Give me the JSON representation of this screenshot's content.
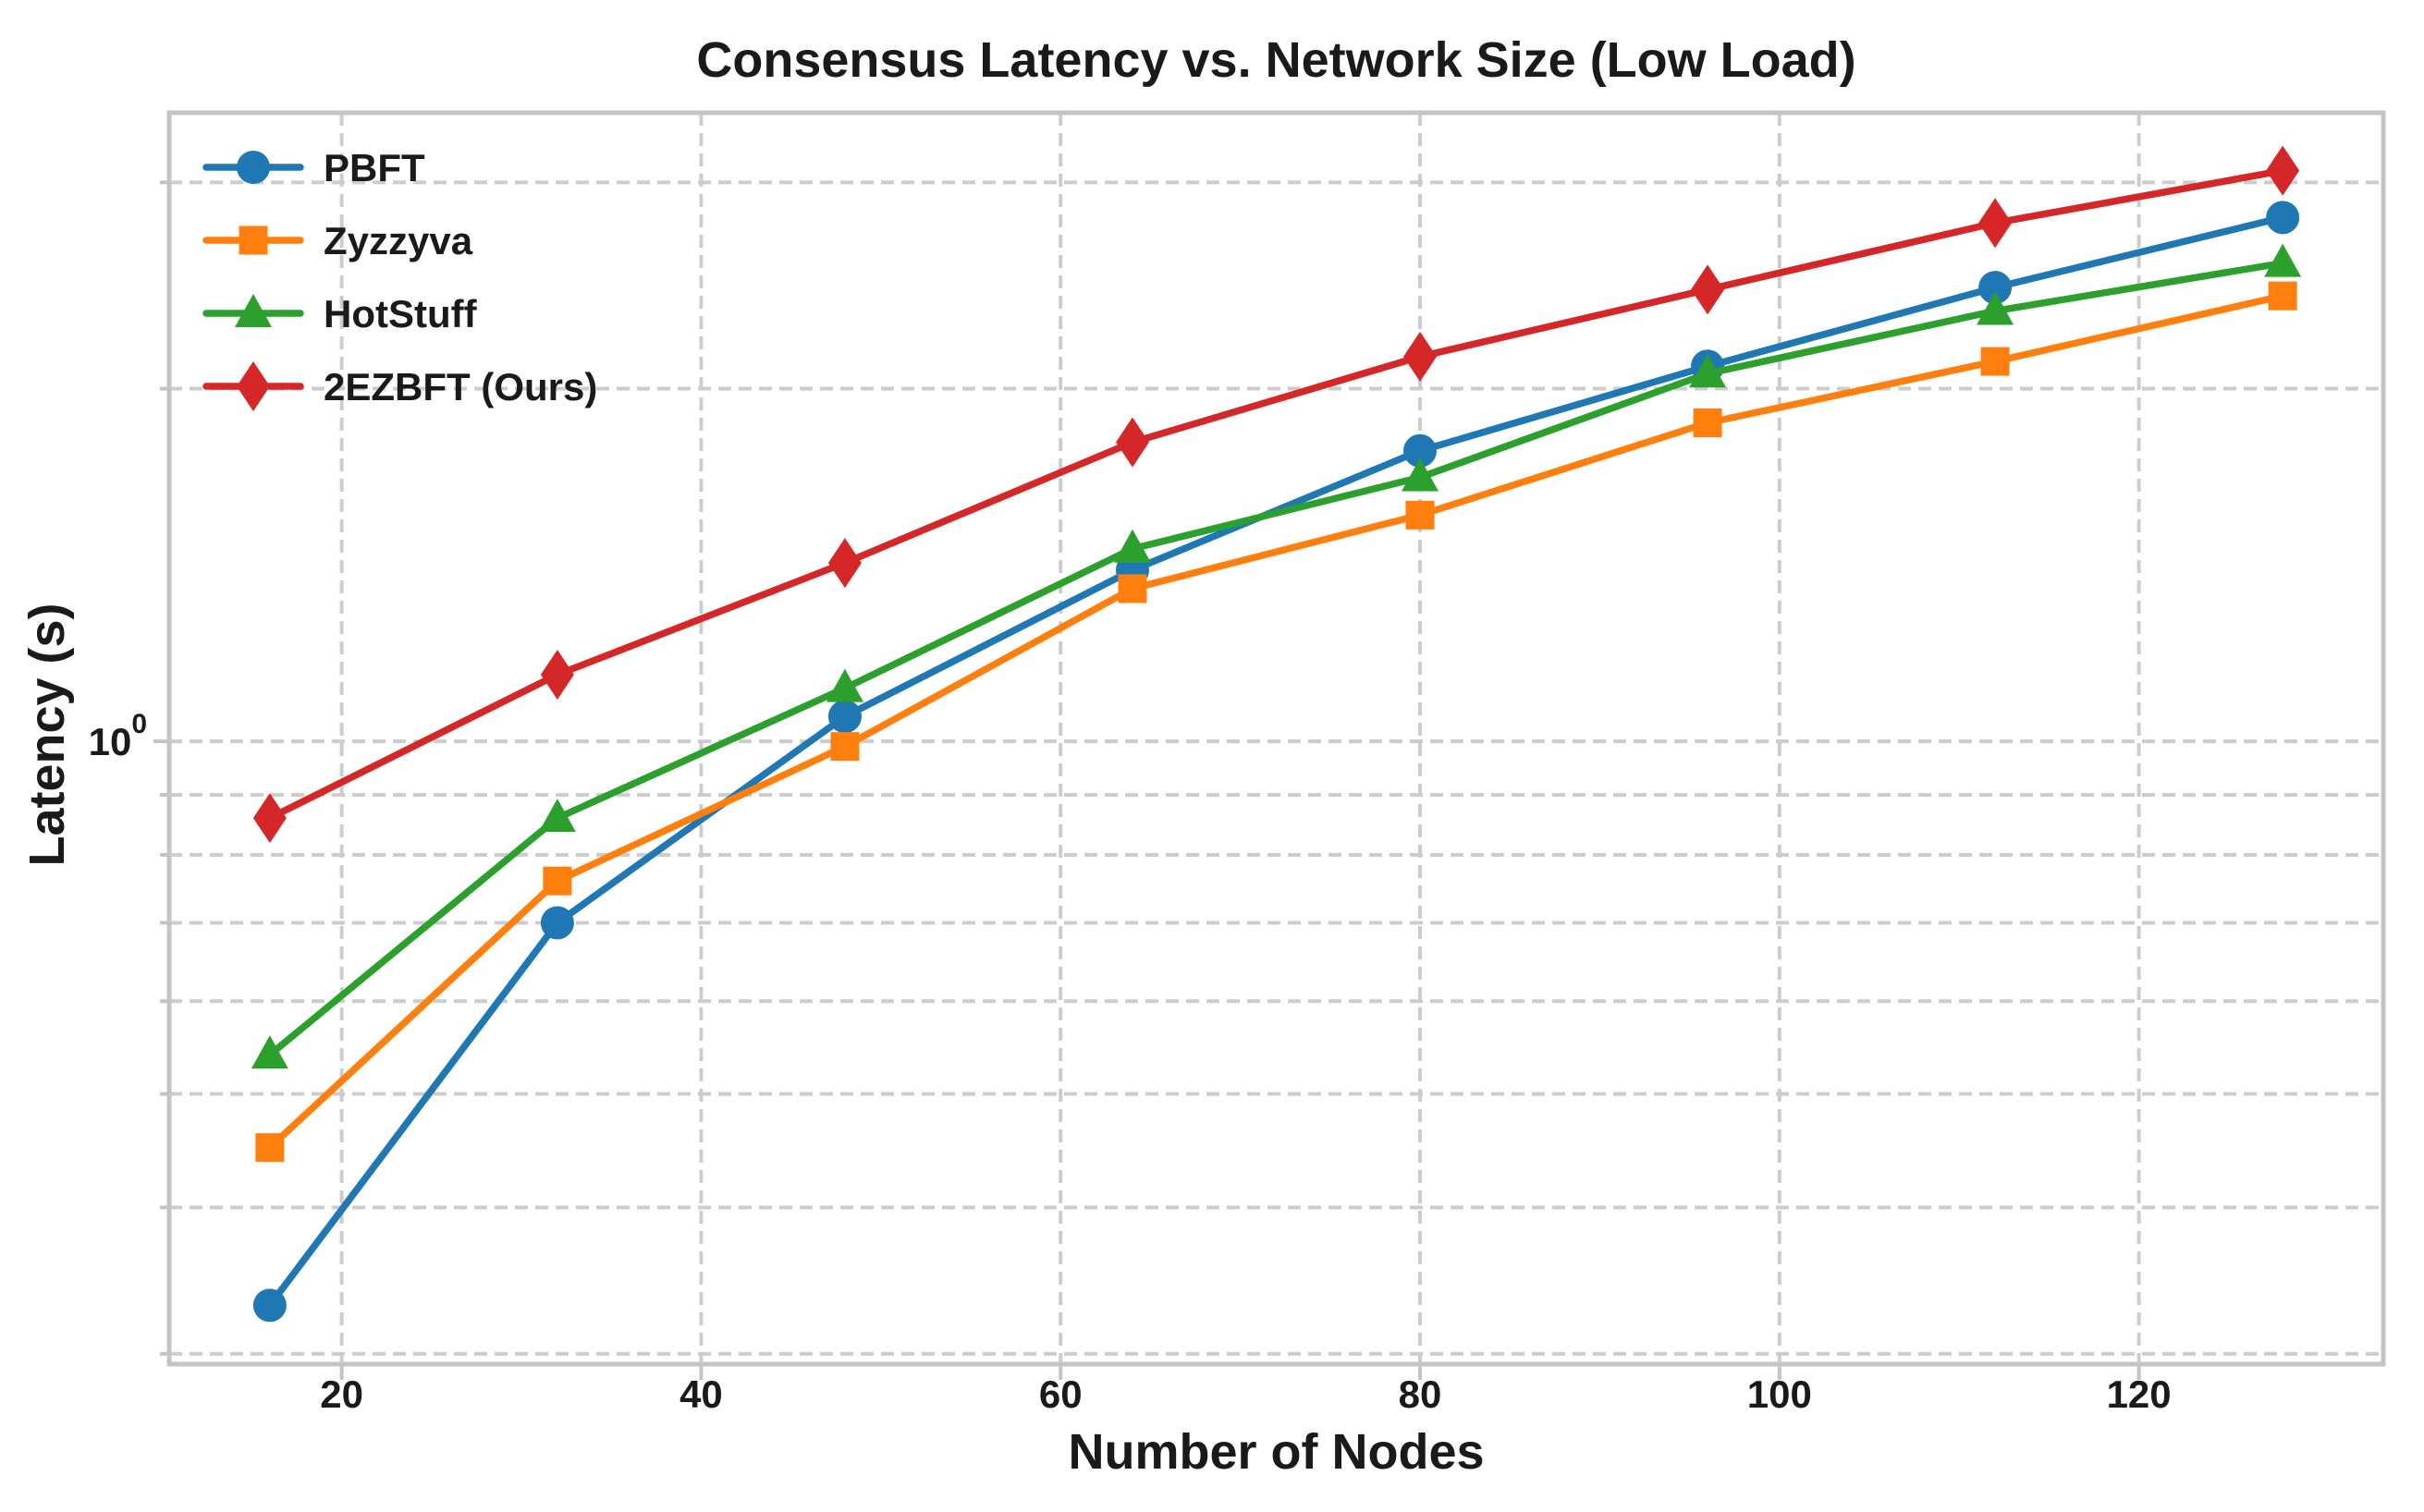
{
  "chart_data": {
    "type": "line",
    "title": "Consensus Latency vs. Network Size (Low Load)",
    "xlabel": "Number of Nodes",
    "ylabel": "Latency (s)",
    "x": [
      16,
      32,
      48,
      64,
      80,
      96,
      112,
      128
    ],
    "series": [
      {
        "name": "PBFT",
        "color": "#1f77b4",
        "marker": "circle",
        "values": [
          0.33,
          0.7,
          1.05,
          1.4,
          1.77,
          2.09,
          2.44,
          2.8
        ]
      },
      {
        "name": "Zyzzyva",
        "color": "#ff7f0e",
        "marker": "square",
        "values": [
          0.45,
          0.76,
          0.99,
          1.35,
          1.56,
          1.87,
          2.11,
          2.4
        ]
      },
      {
        "name": "HotStuff",
        "color": "#2ca02c",
        "marker": "triangle",
        "values": [
          0.54,
          0.86,
          1.11,
          1.46,
          1.68,
          2.06,
          2.33,
          2.56
        ]
      },
      {
        "name": "2EZBFT (Ours)",
        "color": "#d62728",
        "marker": "diamond",
        "values": [
          0.86,
          1.14,
          1.42,
          1.8,
          2.13,
          2.43,
          2.77,
          3.07
        ]
      }
    ],
    "x_ticks": [
      20,
      40,
      60,
      80,
      100,
      120
    ],
    "y_tick": {
      "base": "10",
      "exponent": "0",
      "value": 1
    },
    "y_gridlines": [
      0.3,
      0.4,
      0.5,
      0.6,
      0.7,
      0.8,
      0.9,
      1,
      2,
      3
    ],
    "y_scale": "log",
    "x_scale": "linear",
    "xlim": [
      10.4,
      133.6
    ],
    "ylim": [
      0.294,
      3.44
    ],
    "grid": true,
    "legend": {
      "position": "upper left",
      "labels": [
        "PBFT",
        "Zyzzyva",
        "HotStuff",
        "2EZBFT (Ours)"
      ]
    }
  },
  "style": {
    "background": "#ffffff",
    "grid_color": "#cccccc",
    "spine_color": "#c4c4c4",
    "tick_color": "#c4c4c4",
    "text_color": "#1a1a1a"
  }
}
